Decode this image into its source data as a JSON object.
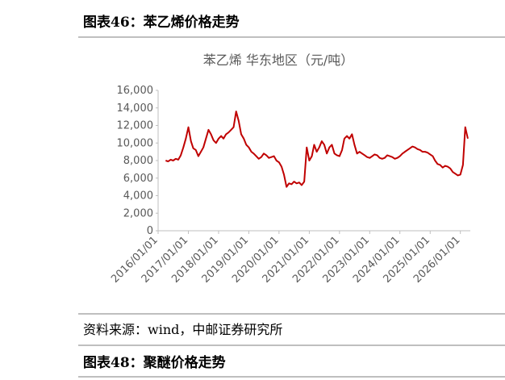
{
  "header": {
    "title": "图表46：苯乙烯价格走势"
  },
  "chart_data": {
    "type": "line",
    "title": "苯乙烯 华东地区（元/吨）",
    "color": "#c00000",
    "x": [
      "2016/04/01",
      "2016/05/01",
      "2016/06/01",
      "2016/07/01",
      "2016/08/01",
      "2016/09/01",
      "2016/10/01",
      "2016/11/01",
      "2016/12/01",
      "2017/01/01",
      "2017/02/01",
      "2017/03/01",
      "2017/04/01",
      "2017/05/01",
      "2017/06/01",
      "2017/07/01",
      "2017/08/01",
      "2017/09/01",
      "2017/10/01",
      "2017/11/01",
      "2017/12/01",
      "2018/01/01",
      "2018/02/01",
      "2018/03/01",
      "2018/04/01",
      "2018/05/01",
      "2018/06/01",
      "2018/07/01",
      "2018/08/01",
      "2018/09/01",
      "2018/10/01",
      "2018/11/01",
      "2018/12/01",
      "2019/01/01",
      "2019/02/01",
      "2019/03/01",
      "2019/04/01",
      "2019/05/01",
      "2019/06/01",
      "2019/07/01",
      "2019/08/01",
      "2019/09/01",
      "2019/10/01",
      "2019/11/01",
      "2019/12/01",
      "2020/01/01",
      "2020/02/01",
      "2020/03/01",
      "2020/04/01",
      "2020/05/01",
      "2020/06/01",
      "2020/07/01",
      "2020/08/01",
      "2020/09/01",
      "2020/10/01",
      "2020/11/01",
      "2020/12/01",
      "2021/01/01",
      "2021/02/01",
      "2021/03/01",
      "2021/04/01",
      "2021/05/01",
      "2021/06/01",
      "2021/07/01",
      "2021/08/01",
      "2021/09/01",
      "2021/10/01",
      "2021/11/01",
      "2021/12/01",
      "2022/01/01",
      "2022/02/01",
      "2022/03/01",
      "2022/04/01",
      "2022/05/01",
      "2022/06/01",
      "2022/07/01",
      "2022/08/01",
      "2022/09/01",
      "2022/10/01",
      "2022/11/01",
      "2022/12/01",
      "2023/01/01",
      "2023/02/01",
      "2023/03/01",
      "2023/04/01",
      "2023/05/01",
      "2023/06/01",
      "2023/07/01",
      "2023/08/01",
      "2023/09/01",
      "2023/10/01",
      "2023/11/01",
      "2023/12/01",
      "2024/01/01",
      "2024/02/01",
      "2024/03/01",
      "2024/04/01",
      "2024/05/01",
      "2024/06/01",
      "2024/07/01",
      "2024/08/01",
      "2024/09/01",
      "2024/10/01",
      "2024/11/01",
      "2024/12/01",
      "2025/01/01",
      "2025/02/01",
      "2025/03/01",
      "2025/04/01",
      "2025/05/01",
      "2025/06/01",
      "2025/07/01",
      "2025/08/01",
      "2025/09/01",
      "2025/10/01",
      "2025/11/01",
      "2025/12/01",
      "2026/01/01",
      "2026/02/01",
      "2026/03/01",
      "2026/04/01"
    ],
    "values": [
      8000,
      7900,
      8100,
      8000,
      8200,
      8100,
      8600,
      9500,
      10500,
      11800,
      10200,
      9400,
      9200,
      8500,
      9000,
      9500,
      10500,
      11500,
      11000,
      10300,
      10000,
      10500,
      10800,
      10500,
      11000,
      11200,
      11500,
      11800,
      13600,
      12500,
      11000,
      10500,
      9800,
      9500,
      9000,
      8800,
      8500,
      8200,
      8400,
      8800,
      8600,
      8300,
      8400,
      8500,
      8000,
      7800,
      7300,
      6400,
      5000,
      5400,
      5300,
      5600,
      5400,
      5500,
      5200,
      5600,
      9500,
      8000,
      8500,
      9800,
      9000,
      9500,
      10200,
      9800,
      8800,
      9500,
      9800,
      8800,
      8600,
      8500,
      9200,
      10500,
      10800,
      10500,
      11000,
      9800,
      8800,
      9000,
      8800,
      8600,
      8400,
      8300,
      8500,
      8700,
      8600,
      8300,
      8200,
      8300,
      8600,
      8500,
      8400,
      8200,
      8300,
      8500,
      8800,
      9000,
      9200,
      9400,
      9600,
      9500,
      9300,
      9200,
      9000,
      9000,
      8900,
      8700,
      8500,
      8000,
      7600,
      7500,
      7200,
      7400,
      7300,
      7100,
      6700,
      6500,
      6300,
      6400,
      7500,
      11800,
      10500
    ],
    "xlim": [
      "2016/01/01",
      "2026/05/01"
    ],
    "xticks": [
      "2016/01/01",
      "2017/01/01",
      "2018/01/01",
      "2019/01/01",
      "2020/01/01",
      "2021/01/01",
      "2022/01/01",
      "2023/01/01",
      "2024/01/01",
      "2025/01/01",
      "2026/01/01"
    ],
    "ylim": [
      0,
      16000
    ],
    "yticks": [
      0,
      {
        "value": 2000,
        "label": "2,000"
      },
      {
        "value": 4000,
        "label": "4,000"
      },
      {
        "value": 6000,
        "label": "6,000"
      },
      {
        "value": 8000,
        "label": "8,000"
      },
      {
        "value": 10000,
        "label": "10,000"
      },
      {
        "value": 12000,
        "label": "12,000"
      },
      {
        "value": 14000,
        "label": "14,000"
      },
      {
        "value": 16000,
        "label": "16,000"
      }
    ],
    "grid": false
  },
  "footer": {
    "source": "资料来源：wind，中邮证券研究所"
  },
  "next_header": {
    "title": "图表48：聚醚价格走势"
  }
}
